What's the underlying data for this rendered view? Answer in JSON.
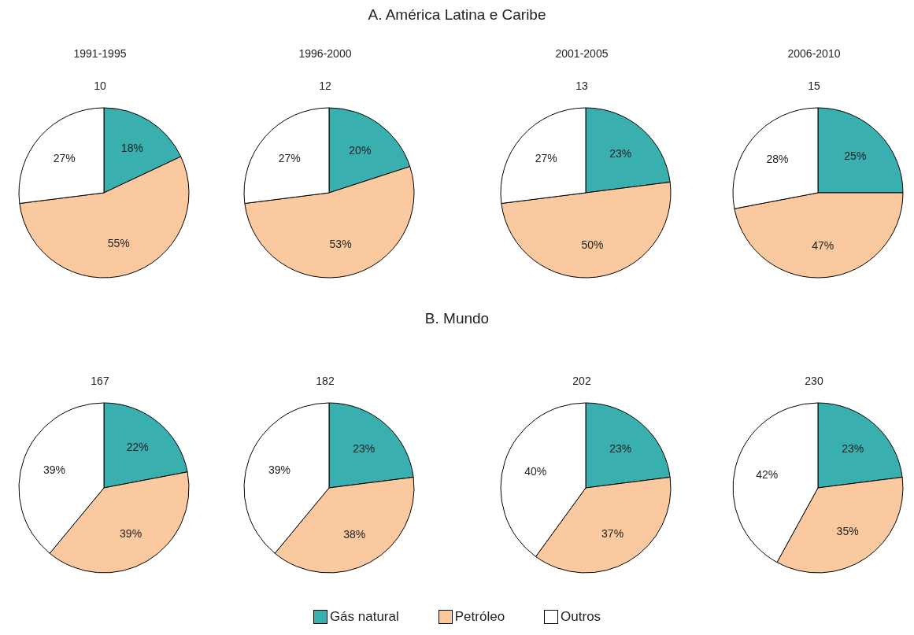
{
  "chart_data": [
    {
      "type": "pie",
      "annotations": [
        "A. América Latina e Caribe"
      ],
      "title": "1991-1995",
      "subtitle": "10",
      "categories": [
        "Gás natural",
        "Petróleo",
        "Outros"
      ],
      "values": [
        18,
        55,
        27
      ],
      "value_labels": [
        "18%",
        "55%",
        "27%"
      ],
      "colors": [
        "#3aafb0",
        "#fbc9a0",
        "#ffffff"
      ],
      "legend": "bottom"
    },
    {
      "type": "pie",
      "title": "1996-2000",
      "subtitle": "12",
      "categories": [
        null,
        null,
        null
      ],
      "values": [
        20,
        53,
        27
      ],
      "value_labels": [
        "20%",
        "53%",
        "27%"
      ],
      "colors": [
        "#3aafb0",
        "#fbc9a0",
        "#ffffff"
      ]
    },
    {
      "type": "pie",
      "title": "2001-2005",
      "subtitle": "13",
      "categories": [
        null,
        null,
        null
      ],
      "values": [
        23,
        50,
        27
      ],
      "value_labels": [
        "23%",
        "50%",
        "27%"
      ],
      "colors": [
        "#3aafb0",
        "#fbc9a0",
        "#ffffff"
      ]
    },
    {
      "type": "pie",
      "title": "2006-2010",
      "subtitle": "15",
      "categories": [
        null,
        null,
        null
      ],
      "values": [
        25,
        47,
        28
      ],
      "value_labels": [
        "25%",
        "47%",
        "28%"
      ],
      "colors": [
        "#3aafb0",
        "#fbc9a0",
        "#ffffff"
      ]
    },
    {
      "type": "pie",
      "annotations": [
        "B. Mundo"
      ],
      "subtitle": "167",
      "categories": [
        null,
        null,
        null
      ],
      "values": [
        22,
        39,
        39
      ],
      "value_labels": [
        "22%",
        "39%",
        "39%"
      ],
      "colors": [
        "#3aafb0",
        "#fbc9a0",
        "#ffffff"
      ]
    },
    {
      "type": "pie",
      "subtitle": "182",
      "categories": [
        null,
        null,
        null
      ],
      "values": [
        23,
        38,
        39
      ],
      "value_labels": [
        "23%",
        "38%",
        "39%"
      ],
      "colors": [
        "#3aafb0",
        "#fbc9a0",
        "#ffffff"
      ]
    },
    {
      "type": "pie",
      "subtitle": "202",
      "categories": [
        null,
        null,
        null
      ],
      "values": [
        23,
        37,
        40
      ],
      "value_labels": [
        "23%",
        "37%",
        "40%"
      ],
      "colors": [
        "#3aafb0",
        "#fbc9a0",
        "#ffffff"
      ]
    },
    {
      "type": "pie",
      "subtitle": "230",
      "categories": [
        null,
        null,
        null
      ],
      "values": [
        23,
        35,
        42
      ],
      "value_labels": [
        "23%",
        "35%",
        "42%"
      ],
      "colors": [
        "#3aafb0",
        "#fbc9a0",
        "#ffffff"
      ]
    }
  ]
}
